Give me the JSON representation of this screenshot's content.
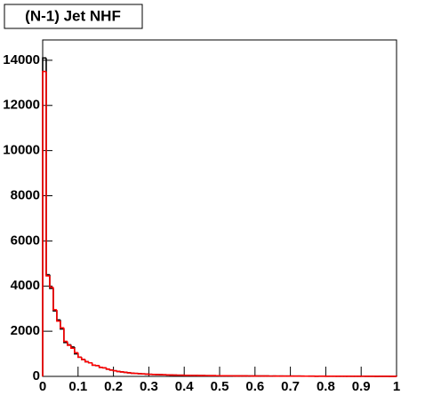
{
  "chart_data": {
    "type": "histogram",
    "title": "(N-1) Jet NHF",
    "bins": [
      0,
      0.01,
      0.02,
      0.03,
      0.04,
      0.05,
      0.06,
      0.07,
      0.08,
      0.09,
      0.1,
      0.11,
      0.12,
      0.13,
      0.14,
      0.15,
      0.16,
      0.17,
      0.18,
      0.19,
      0.2,
      0.21,
      0.22,
      0.23,
      0.24,
      0.25,
      0.26,
      0.27,
      0.28,
      0.29,
      0.3,
      0.31,
      0.32,
      0.33,
      0.34,
      0.35,
      0.36,
      0.37,
      0.38,
      0.39,
      0.4,
      0.41,
      0.42,
      0.43,
      0.44,
      0.45,
      0.46,
      0.47,
      0.48,
      0.49,
      0.5,
      0.51,
      0.52,
      0.53,
      0.54,
      0.55,
      0.56,
      0.57,
      0.58,
      0.59,
      0.6,
      0.61,
      0.62,
      0.63,
      0.64,
      0.65,
      0.66,
      0.67,
      0.68,
      0.69,
      0.7,
      0.71,
      0.72,
      0.73,
      0.74,
      0.75,
      0.76,
      0.77,
      0.78,
      0.79,
      0.8,
      0.81,
      0.82,
      0.83,
      0.84,
      0.85,
      0.86,
      0.87,
      0.88,
      0.89,
      0.9,
      0.91,
      0.92,
      0.93,
      0.94,
      0.95,
      0.96,
      0.97,
      0.98,
      0.99,
      1
    ],
    "series": [
      {
        "color": "#000000",
        "values": [
          14100,
          4500,
          3900,
          2900,
          2500,
          2100,
          1500,
          1400,
          1300,
          1000,
          850,
          750,
          650,
          600,
          500,
          480,
          400,
          380,
          320,
          280,
          250,
          220,
          200,
          180,
          160,
          140,
          130,
          120,
          110,
          100,
          90,
          85,
          80,
          75,
          70,
          65,
          60,
          57,
          54,
          50,
          47,
          45,
          42,
          40,
          38,
          36,
          34,
          32,
          30,
          29,
          28,
          27,
          26,
          25,
          24,
          23,
          22,
          21,
          20,
          19,
          18,
          18,
          17,
          16,
          15,
          15,
          14,
          14,
          13,
          13,
          12,
          12,
          11,
          11,
          10,
          10,
          10,
          9,
          9,
          9,
          8,
          8,
          8,
          7,
          7,
          7,
          6,
          6,
          6,
          6,
          5,
          5,
          5,
          5,
          4,
          4,
          4,
          4,
          3,
          3
        ]
      },
      {
        "color": "#ff0000",
        "values": [
          13500,
          4450,
          3950,
          2950,
          2450,
          2150,
          1550,
          1380,
          1250,
          1050,
          850,
          750,
          650,
          600,
          500,
          480,
          400,
          380,
          320,
          280,
          250,
          220,
          200,
          180,
          160,
          140,
          130,
          120,
          110,
          100,
          90,
          85,
          80,
          75,
          70,
          65,
          60,
          57,
          54,
          50,
          47,
          45,
          42,
          40,
          38,
          36,
          34,
          32,
          30,
          29,
          28,
          27,
          26,
          25,
          24,
          23,
          22,
          21,
          20,
          19,
          18,
          18,
          17,
          16,
          15,
          15,
          14,
          14,
          13,
          13,
          12,
          12,
          11,
          11,
          10,
          10,
          10,
          9,
          9,
          9,
          8,
          8,
          8,
          7,
          7,
          7,
          6,
          6,
          6,
          6,
          5,
          5,
          5,
          5,
          4,
          4,
          4,
          4,
          3,
          3
        ]
      }
    ],
    "xlim": [
      0,
      1
    ],
    "xticks": [
      0,
      0.1,
      0.2,
      0.3,
      0.4,
      0.5,
      0.6,
      0.7,
      0.8,
      0.9,
      1
    ],
    "ylim": [
      0,
      14900
    ],
    "yticks": [
      0,
      2000,
      4000,
      6000,
      8000,
      10000,
      12000,
      14000
    ]
  }
}
